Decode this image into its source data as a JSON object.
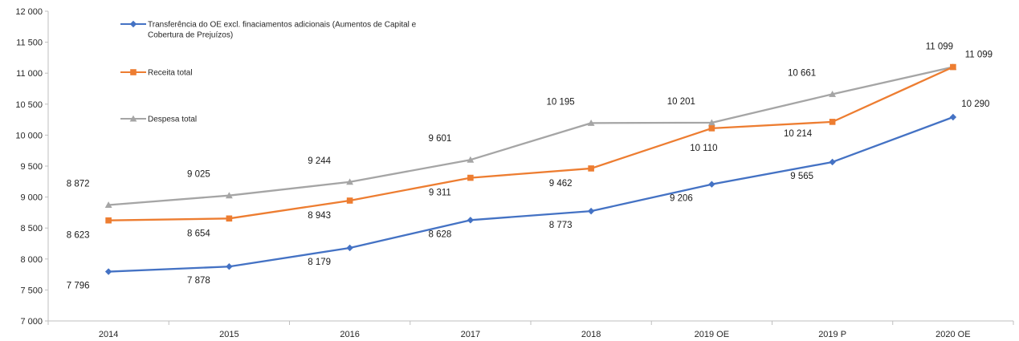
{
  "chart_data": {
    "type": "line",
    "categories": [
      "2014",
      "2015",
      "2016",
      "2017",
      "2018",
      "2019 OE",
      "2019 P",
      "2020 OE"
    ],
    "ylim": [
      7000,
      12000
    ],
    "y_ticks": [
      7000,
      7500,
      8000,
      8500,
      9000,
      9500,
      10000,
      10500,
      11000,
      11500,
      12000
    ],
    "y_tick_labels": [
      "7 000",
      "7 500",
      "8 000",
      "8 500",
      "9 000",
      "9 500",
      "10 000",
      "10 500",
      "11 000",
      "11 500",
      "12 000"
    ],
    "grid": false,
    "legend_position": "top-left",
    "series": [
      {
        "name": "Transferência do OE excl. finaciamentos adicionais (Aumentos de Capital e Cobertura de Prejuízos)",
        "legend_lines": [
          "Transferência do OE excl. finaciamentos adicionais (Aumentos de Capital e",
          "Cobertura de Prejuízos)"
        ],
        "values": [
          7796,
          7878,
          8179,
          8628,
          8773,
          9206,
          9565,
          10290
        ],
        "labels": [
          "7 796",
          "7 878",
          "8 179",
          "8 628",
          "8 773",
          "9 206",
          "9 565",
          "10 290"
        ],
        "color": "#4472C4",
        "marker": "diamond"
      },
      {
        "name": "Receita total",
        "legend_lines": [
          "Receita total"
        ],
        "values": [
          8623,
          8654,
          8943,
          9311,
          9462,
          10110,
          10214,
          11099
        ],
        "labels": [
          "8 623",
          "8 654",
          "8 943",
          "9 311",
          "9 462",
          "10 110",
          "10 214",
          "11 099"
        ],
        "color": "#ED7D31",
        "marker": "square"
      },
      {
        "name": "Despesa total",
        "legend_lines": [
          "Despesa total"
        ],
        "values": [
          8872,
          9025,
          9244,
          9601,
          10195,
          10201,
          10661,
          11099
        ],
        "labels": [
          "8 872",
          "9 025",
          "9 244",
          "9 601",
          "10 195",
          "10 201",
          "10 661",
          "11 099"
        ],
        "color": "#A5A5A5",
        "marker": "triangle"
      }
    ]
  }
}
